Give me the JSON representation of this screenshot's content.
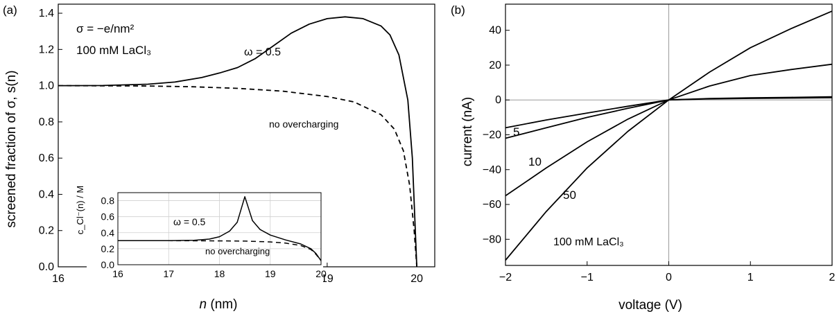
{
  "chart_data": [
    {
      "panel": "(a)",
      "type": "line",
      "xlabel": "n",
      "xunit": " (nm)",
      "ylabel": "screened fraction of σ, s(n)",
      "xlim": [
        16,
        20.2
      ],
      "ylim": [
        0,
        1.45
      ],
      "xticks": [
        16,
        17,
        18,
        19,
        20
      ],
      "yticks": [
        0.0,
        0.2,
        0.4,
        0.6,
        0.8,
        1.0,
        1.2,
        1.4
      ],
      "grid": false,
      "annotations": {
        "sigma": "σ = −e/nm²",
        "salt": "100 mM LaCl₃",
        "omega": "ω = 0.5",
        "no_overcharging": "no overcharging"
      },
      "series": [
        {
          "style": "solid",
          "x": [
            16,
            16.5,
            17,
            17.3,
            17.6,
            17.8,
            18.0,
            18.2,
            18.4,
            18.6,
            18.8,
            19.0,
            19.2,
            19.4,
            19.6,
            19.7,
            19.8,
            19.9,
            19.95,
            20.0
          ],
          "y": [
            1.0,
            1.001,
            1.008,
            1.02,
            1.045,
            1.07,
            1.1,
            1.15,
            1.22,
            1.29,
            1.34,
            1.37,
            1.38,
            1.37,
            1.33,
            1.28,
            1.17,
            0.92,
            0.6,
            0.0
          ]
        },
        {
          "style": "dashed",
          "x": [
            16,
            17,
            17.5,
            18,
            18.5,
            19,
            19.3,
            19.6,
            19.75,
            19.85,
            19.92,
            19.97,
            20.0
          ],
          "y": [
            1.0,
            0.998,
            0.994,
            0.985,
            0.97,
            0.94,
            0.91,
            0.84,
            0.76,
            0.64,
            0.45,
            0.2,
            0.0
          ]
        }
      ],
      "inset": {
        "type": "line",
        "ylabel": "c_Cl⁻(n) / M",
        "xlim": [
          16,
          20
        ],
        "ylim": [
          0,
          0.9
        ],
        "xticks": [
          16,
          17,
          18,
          19,
          20
        ],
        "yticks": [
          0.0,
          0.2,
          0.4,
          0.6,
          0.8
        ],
        "grid": true,
        "annotations": {
          "omega": "ω = 0.5",
          "no_overcharging": "no overcharging"
        },
        "series": [
          {
            "style": "solid",
            "x": [
              16,
              17,
              17.5,
              17.8,
              18.0,
              18.2,
              18.35,
              18.5,
              18.65,
              18.8,
              19.0,
              19.3,
              19.6,
              19.8,
              19.9,
              20.0
            ],
            "y": [
              0.3,
              0.3,
              0.305,
              0.32,
              0.35,
              0.42,
              0.53,
              0.85,
              0.55,
              0.44,
              0.37,
              0.31,
              0.26,
              0.2,
              0.14,
              0.05
            ]
          },
          {
            "style": "dashed",
            "x": [
              16,
              17,
              18,
              18.5,
              19,
              19.3,
              19.6,
              19.8,
              19.9,
              20.0
            ],
            "y": [
              0.3,
              0.3,
              0.298,
              0.295,
              0.285,
              0.27,
              0.24,
              0.19,
              0.13,
              0.05
            ]
          }
        ]
      }
    },
    {
      "panel": "(b)",
      "type": "line",
      "xlabel": "voltage (V)",
      "ylabel": "current (nA)",
      "xlim": [
        -2,
        2
      ],
      "ylim": [
        -95,
        55
      ],
      "xticks": [
        -2,
        -1,
        0,
        1,
        2
      ],
      "xtick_labels": [
        "−2",
        "−1",
        "0",
        "1",
        "2"
      ],
      "yticks": [
        -80,
        -60,
        -40,
        -20,
        0,
        20,
        40
      ],
      "grid": false,
      "zero_lines": true,
      "labels": {
        "c5": "5",
        "c10": "10",
        "c50": "50",
        "c100": "100 mM LaCl₃"
      },
      "series": [
        {
          "name": "100 mM LaCl₃",
          "x": [
            -2,
            -1.5,
            -1,
            -0.5,
            0,
            0.5,
            1,
            1.5,
            2
          ],
          "y": [
            -92,
            -64,
            -39,
            -18,
            0,
            16,
            30,
            41,
            51
          ]
        },
        {
          "name": "50",
          "x": [
            -2,
            -1.5,
            -1,
            -0.5,
            0,
            0.5,
            1,
            1.5,
            2
          ],
          "y": [
            -55,
            -39,
            -24,
            -11,
            0,
            8,
            14,
            17.5,
            20.5
          ]
        },
        {
          "name": "10",
          "x": [
            -2,
            -1.5,
            -1,
            -0.5,
            0,
            0.5,
            1,
            1.5,
            2
          ],
          "y": [
            -22,
            -16,
            -10,
            -4.8,
            0,
            0.8,
            1.2,
            1.5,
            1.8
          ]
        },
        {
          "name": "5",
          "x": [
            -2,
            -1.5,
            -1,
            -0.5,
            0,
            0.5,
            1,
            1.5,
            2
          ],
          "y": [
            -16,
            -11.5,
            -7.5,
            -3.6,
            0,
            0.6,
            0.9,
            1.1,
            1.3
          ]
        }
      ]
    }
  ]
}
